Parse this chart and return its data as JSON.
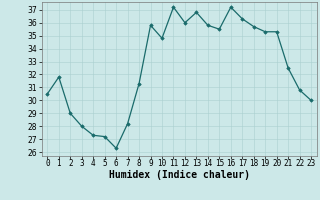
{
  "x": [
    0,
    1,
    2,
    3,
    4,
    5,
    6,
    7,
    8,
    9,
    10,
    11,
    12,
    13,
    14,
    15,
    16,
    17,
    18,
    19,
    20,
    21,
    22,
    23
  ],
  "y": [
    30.5,
    31.8,
    29.0,
    28.0,
    27.3,
    27.2,
    26.3,
    28.2,
    31.3,
    35.8,
    34.8,
    37.2,
    36.0,
    36.8,
    35.8,
    35.5,
    37.2,
    36.3,
    35.7,
    35.3,
    35.3,
    32.5,
    30.8,
    30.0
  ],
  "line_color": "#1a6b6b",
  "marker": "D",
  "marker_size": 1.8,
  "bg_color": "#cce8e8",
  "grid_color": "#aad0d0",
  "xlabel": "Humidex (Indice chaleur)",
  "ylim": [
    25.7,
    37.6
  ],
  "yticks": [
    26,
    27,
    28,
    29,
    30,
    31,
    32,
    33,
    34,
    35,
    36,
    37
  ],
  "xlim": [
    -0.5,
    23.5
  ],
  "xticks": [
    0,
    1,
    2,
    3,
    4,
    5,
    6,
    7,
    8,
    9,
    10,
    11,
    12,
    13,
    14,
    15,
    16,
    17,
    18,
    19,
    20,
    21,
    22,
    23
  ],
  "xlabel_fontsize": 7,
  "tick_fontsize": 5.5,
  "linewidth": 0.9
}
